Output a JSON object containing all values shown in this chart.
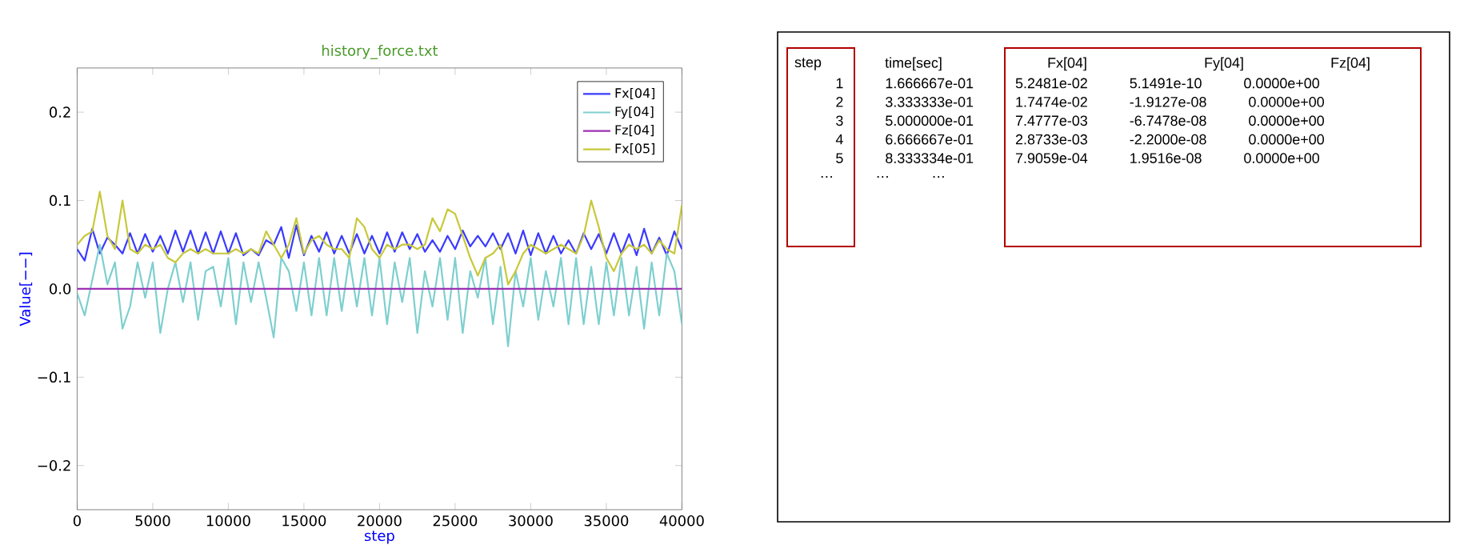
{
  "chart_data": [
    {
      "type": "line",
      "title": "history_force.txt",
      "xlabel": "step",
      "ylabel": "Value[−−]",
      "x": [
        0,
        500,
        1000,
        1500,
        2000,
        2500,
        3000,
        3500,
        4000,
        4500,
        5000,
        5500,
        6000,
        6500,
        7000,
        7500,
        8000,
        8500,
        9000,
        9500,
        10000,
        10500,
        11000,
        11500,
        12000,
        12500,
        13000,
        13500,
        14000,
        14500,
        15000,
        15500,
        16000,
        16500,
        17000,
        17500,
        18000,
        18500,
        19000,
        19500,
        20000,
        20500,
        21000,
        21500,
        22000,
        22500,
        23000,
        23500,
        24000,
        24500,
        25000,
        25500,
        26000,
        26500,
        27000,
        27500,
        28000,
        28500,
        29000,
        29500,
        30000,
        30500,
        31000,
        31500,
        32000,
        32500,
        33000,
        33500,
        34000,
        34500,
        35000,
        35500,
        36000,
        36500,
        37000,
        37500,
        38000,
        38500,
        39000,
        39500,
        40000
      ],
      "series": [
        {
          "name": "Fx[04]",
          "color": "#3a3aff",
          "values": [
            0.045,
            0.032,
            0.068,
            0.04,
            0.058,
            0.05,
            0.04,
            0.063,
            0.04,
            0.062,
            0.042,
            0.06,
            0.04,
            0.066,
            0.042,
            0.066,
            0.04,
            0.064,
            0.04,
            0.065,
            0.04,
            0.063,
            0.038,
            0.045,
            0.038,
            0.055,
            0.05,
            0.07,
            0.035,
            0.072,
            0.038,
            0.06,
            0.042,
            0.064,
            0.04,
            0.06,
            0.04,
            0.062,
            0.04,
            0.06,
            0.04,
            0.064,
            0.042,
            0.064,
            0.045,
            0.062,
            0.042,
            0.055,
            0.042,
            0.06,
            0.045,
            0.066,
            0.048,
            0.06,
            0.048,
            0.063,
            0.045,
            0.063,
            0.04,
            0.066,
            0.038,
            0.063,
            0.04,
            0.06,
            0.04,
            0.055,
            0.04,
            0.063,
            0.045,
            0.062,
            0.04,
            0.063,
            0.04,
            0.062,
            0.038,
            0.068,
            0.04,
            0.058,
            0.038,
            0.065,
            0.045
          ]
        },
        {
          "name": "Fy[04]",
          "color": "#7fcfcf",
          "values": [
            -0.005,
            -0.03,
            0.01,
            0.05,
            0.005,
            0.03,
            -0.045,
            -0.02,
            0.03,
            -0.01,
            0.03,
            -0.05,
            0.0,
            0.03,
            -0.015,
            0.03,
            -0.035,
            0.02,
            0.025,
            -0.02,
            0.035,
            -0.04,
            0.03,
            -0.015,
            0.03,
            -0.01,
            -0.055,
            0.035,
            0.02,
            -0.025,
            0.03,
            -0.03,
            0.035,
            -0.03,
            0.035,
            -0.025,
            0.035,
            -0.02,
            0.035,
            -0.03,
            0.035,
            -0.04,
            0.03,
            -0.015,
            0.035,
            -0.05,
            0.02,
            -0.02,
            0.035,
            -0.035,
            0.035,
            -0.05,
            0.02,
            -0.01,
            0.035,
            -0.04,
            0.025,
            -0.065,
            0.02,
            -0.02,
            0.035,
            -0.035,
            0.02,
            -0.02,
            0.035,
            -0.04,
            0.035,
            -0.04,
            0.025,
            -0.04,
            0.03,
            -0.03,
            0.035,
            -0.03,
            0.025,
            -0.045,
            0.03,
            -0.03,
            0.04,
            0.02,
            -0.04
          ]
        },
        {
          "name": "Fz[04]",
          "color": "#9b30b4",
          "x": [
            0,
            40000
          ],
          "values": [
            0.0,
            0.0
          ]
        },
        {
          "name": "Fx[05]",
          "color": "#c8c83a",
          "values": [
            0.05,
            0.06,
            0.065,
            0.11,
            0.06,
            0.045,
            0.1,
            0.045,
            0.04,
            0.05,
            0.045,
            0.05,
            0.035,
            0.03,
            0.04,
            0.045,
            0.04,
            0.045,
            0.04,
            0.04,
            0.04,
            0.045,
            0.04,
            0.045,
            0.04,
            0.065,
            0.05,
            0.035,
            0.05,
            0.08,
            0.04,
            0.055,
            0.06,
            0.05,
            0.045,
            0.045,
            0.035,
            0.08,
            0.07,
            0.045,
            0.035,
            0.05,
            0.045,
            0.05,
            0.05,
            0.045,
            0.05,
            0.08,
            0.065,
            0.09,
            0.085,
            0.06,
            0.035,
            0.015,
            0.035,
            0.04,
            0.05,
            0.005,
            0.02,
            0.04,
            0.05,
            0.045,
            0.04,
            0.045,
            0.05,
            0.045,
            0.04,
            0.06,
            0.1,
            0.07,
            0.035,
            0.02,
            0.04,
            0.05,
            0.045,
            0.05,
            0.04,
            0.055,
            0.045,
            0.04,
            0.095
          ]
        }
      ],
      "xlim": [
        0,
        40000
      ],
      "ylim": [
        -0.25,
        0.25
      ],
      "xticks": [
        0,
        5000,
        10000,
        15000,
        20000,
        25000,
        30000,
        35000,
        40000
      ],
      "yticks": [
        {
          "value": -0.2,
          "label": "−0.2"
        },
        {
          "value": -0.1,
          "label": "−0.1"
        },
        {
          "value": 0.0,
          "label": "0.0"
        },
        {
          "value": 0.1,
          "label": "0.1"
        },
        {
          "value": 0.2,
          "label": "0.2"
        }
      ],
      "legend": "top right"
    },
    {
      "type": "other",
      "categories": [
        "step",
        "time[sec]",
        "Fx[04]",
        "Fy[04]",
        "Fz[04]"
      ],
      "annotations": [
        "1 1.666667e-01 5.2481e-02 5.1491e-10 0.0000e+00",
        "2 3.333333e-01 1.7474e-02 -1.9127e-08 0.0000e+00",
        "3 5.000000e-01 7.4777e-03 -6.7478e-08 0.0000e+00",
        "4 6.666667e-01 2.8733e-03 -2.2000e-08 0.0000e+00",
        "5 8.333334e-01 7.9059e-04 1.9516e-08 0.0000e+00",
        "… … …"
      ]
    }
  ]
}
